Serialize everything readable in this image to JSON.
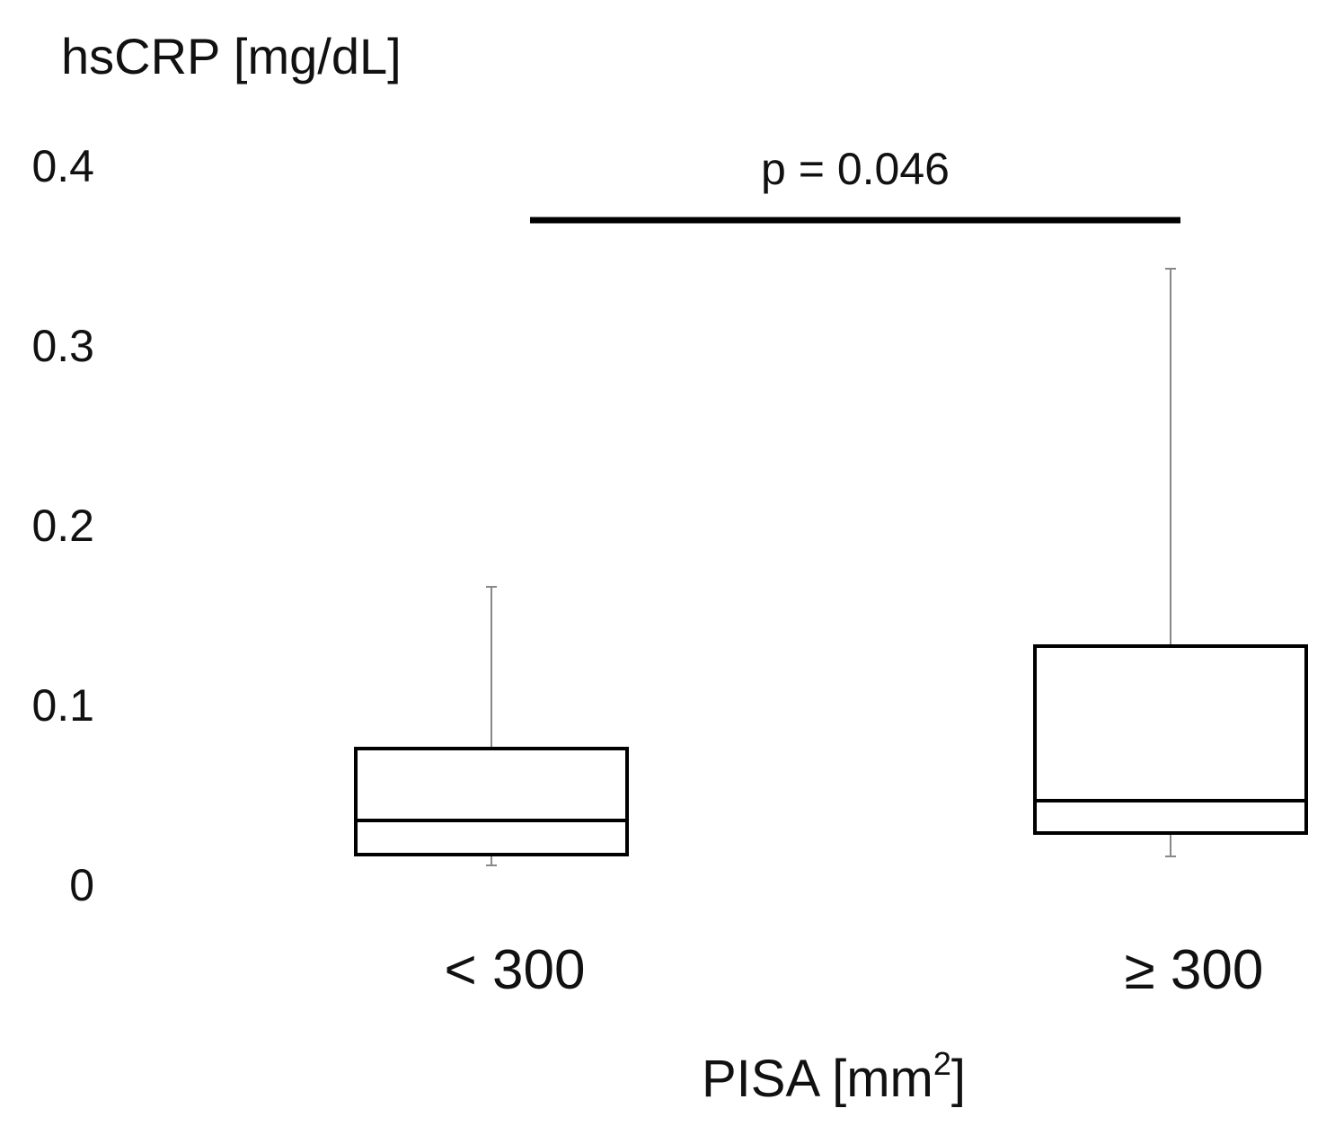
{
  "chart_data": {
    "type": "box",
    "ylabel": "hsCRP [mg/dL]",
    "xlabel": "PISA [mm",
    "xlabel_sup": "2",
    "xlabel_suffix": "]",
    "ylim": [
      0,
      0.4
    ],
    "y_ticks": [
      {
        "value": 0,
        "label": "0"
      },
      {
        "value": 0.1,
        "label": "0.1"
      },
      {
        "value": 0.2,
        "label": "0.2"
      },
      {
        "value": 0.3,
        "label": "0.3"
      },
      {
        "value": 0.4,
        "label": "0.4"
      }
    ],
    "categories": [
      "< 300",
      "≥ 300"
    ],
    "boxes": [
      {
        "category": "< 300",
        "whisker_low": 0.011,
        "q1": 0.017,
        "median": 0.036,
        "q3": 0.076,
        "whisker_high": 0.166
      },
      {
        "category": "≥ 300",
        "whisker_low": 0.016,
        "q1": 0.029,
        "median": 0.047,
        "q3": 0.133,
        "whisker_high": 0.343
      }
    ],
    "significance": {
      "label": "p = 0.046",
      "between": [
        "< 300",
        "≥ 300"
      ],
      "y": 0.37
    },
    "grid": false,
    "legend": "none"
  }
}
